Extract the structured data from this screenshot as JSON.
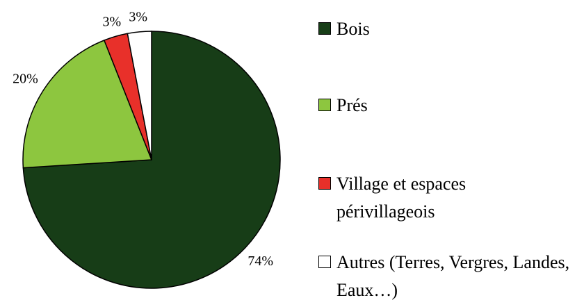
{
  "chart_data": {
    "type": "pie",
    "categories": [
      "Bois",
      "Prés",
      "Village et espaces périvillageois",
      "Autres (Terres, Vergres, Landes, Eaux…)"
    ],
    "values": [
      74,
      20,
      3,
      3
    ],
    "value_labels": [
      "74%",
      "20%",
      "3%",
      "3%"
    ],
    "colors": [
      "#173d17",
      "#8dc63f",
      "#e8302a",
      "#ffffff"
    ],
    "legend": "right"
  }
}
